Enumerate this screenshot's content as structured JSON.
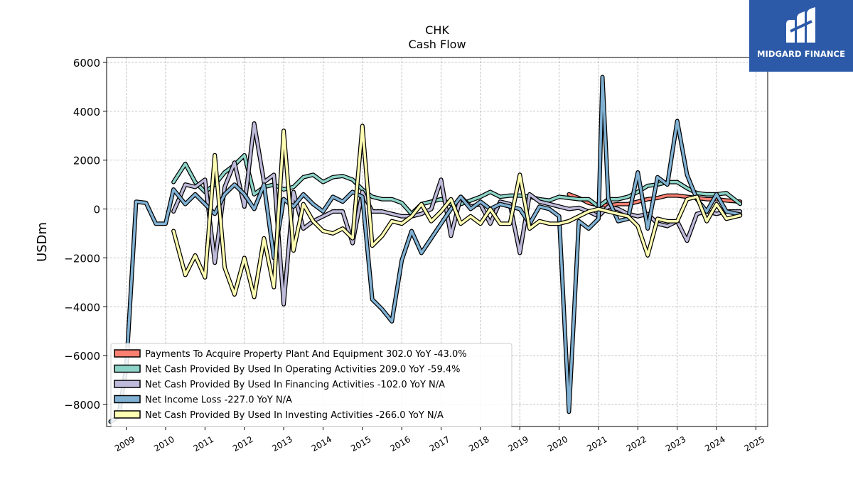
{
  "header": {
    "title": "CHK",
    "subtitle": "Cash Flow"
  },
  "logo": {
    "brand": "MIDGARD FINANCE",
    "background": "#2c5aa8"
  },
  "chart_data": {
    "type": "line",
    "ylabel": "USDm",
    "xlabel": "",
    "ylim": [
      -8900,
      6200
    ],
    "xlim": [
      2008.5,
      2025.3
    ],
    "yticks": [
      -8000,
      -6000,
      -4000,
      -2000,
      0,
      2000,
      4000,
      6000
    ],
    "xticks": [
      "2009",
      "2010",
      "2011",
      "2012",
      "2013",
      "2014",
      "2015",
      "2016",
      "2017",
      "2018",
      "2019",
      "2020",
      "2021",
      "2022",
      "2023",
      "2024",
      "2025"
    ],
    "grid": true,
    "legend_position": "lower-left",
    "series": [
      {
        "name": "Payments To Acquire Property Plant And Equipment",
        "legend_label": "Payments To Acquire Property Plant And Equipment  302.0 YoY -43.0%",
        "color": "#fb8072",
        "points": [
          [
            2020.25,
            600
          ],
          [
            2020.5,
            450
          ],
          [
            2020.75,
            250
          ],
          [
            2021.0,
            150
          ],
          [
            2021.25,
            150
          ],
          [
            2021.5,
            200
          ],
          [
            2021.75,
            200
          ],
          [
            2022.0,
            300
          ],
          [
            2022.25,
            400
          ],
          [
            2022.5,
            450
          ],
          [
            2022.75,
            550
          ],
          [
            2023.0,
            550
          ],
          [
            2023.25,
            500
          ],
          [
            2023.5,
            450
          ],
          [
            2023.75,
            400
          ],
          [
            2024.0,
            400
          ],
          [
            2024.25,
            350
          ],
          [
            2024.6,
            302
          ]
        ]
      },
      {
        "name": "Net Cash Provided By Used In Operating Activities",
        "legend_label": "Net Cash Provided By Used In Operating Activities  209.0 YoY -59.4%",
        "color": "#8dd3c7",
        "points": [
          [
            2010.2,
            1100
          ],
          [
            2010.5,
            1850
          ],
          [
            2010.75,
            1100
          ],
          [
            2011.0,
            700
          ],
          [
            2011.25,
            1000
          ],
          [
            2011.5,
            1500
          ],
          [
            2011.75,
            1800
          ],
          [
            2012.0,
            2200
          ],
          [
            2012.25,
            600
          ],
          [
            2012.5,
            900
          ],
          [
            2012.75,
            1000
          ],
          [
            2013.0,
            800
          ],
          [
            2013.25,
            900
          ],
          [
            2013.5,
            1300
          ],
          [
            2013.75,
            1400
          ],
          [
            2014.0,
            1100
          ],
          [
            2014.25,
            1300
          ],
          [
            2014.5,
            1350
          ],
          [
            2014.75,
            1200
          ],
          [
            2015.0,
            800
          ],
          [
            2015.25,
            500
          ],
          [
            2015.5,
            400
          ],
          [
            2015.75,
            400
          ],
          [
            2016.0,
            250
          ],
          [
            2016.25,
            -200
          ],
          [
            2016.5,
            200
          ],
          [
            2016.75,
            300
          ],
          [
            2017.0,
            400
          ],
          [
            2017.25,
            200
          ],
          [
            2017.5,
            200
          ],
          [
            2017.75,
            350
          ],
          [
            2018.0,
            500
          ],
          [
            2018.25,
            700
          ],
          [
            2018.5,
            500
          ],
          [
            2018.75,
            550
          ],
          [
            2019.0,
            550
          ],
          [
            2019.25,
            500
          ],
          [
            2019.5,
            400
          ],
          [
            2019.75,
            350
          ],
          [
            2020.0,
            500
          ],
          [
            2020.25,
            450
          ],
          [
            2020.5,
            400
          ],
          [
            2020.75,
            400
          ],
          [
            2021.0,
            100
          ],
          [
            2021.25,
            400
          ],
          [
            2021.5,
            400
          ],
          [
            2021.75,
            500
          ],
          [
            2022.0,
            700
          ],
          [
            2022.25,
            950
          ],
          [
            2022.5,
            1000
          ],
          [
            2022.75,
            1100
          ],
          [
            2023.0,
            1100
          ],
          [
            2023.25,
            850
          ],
          [
            2023.5,
            650
          ],
          [
            2023.75,
            600
          ],
          [
            2024.0,
            600
          ],
          [
            2024.25,
            650
          ],
          [
            2024.6,
            209
          ]
        ]
      },
      {
        "name": "Net Cash Provided By Used In Financing Activities",
        "legend_label": "Net Cash Provided By Used In Financing Activities  -102.0 YoY N/A",
        "color": "#bebada",
        "points": [
          [
            2010.2,
            -100
          ],
          [
            2010.5,
            1000
          ],
          [
            2010.75,
            900
          ],
          [
            2011.0,
            1200
          ],
          [
            2011.25,
            -2200
          ],
          [
            2011.5,
            900
          ],
          [
            2011.75,
            1900
          ],
          [
            2012.0,
            100
          ],
          [
            2012.25,
            3500
          ],
          [
            2012.5,
            1100
          ],
          [
            2012.75,
            1400
          ],
          [
            2013.0,
            -3900
          ],
          [
            2013.25,
            700
          ],
          [
            2013.5,
            -800
          ],
          [
            2013.75,
            -500
          ],
          [
            2014.0,
            -300
          ],
          [
            2014.25,
            -100
          ],
          [
            2014.5,
            -100
          ],
          [
            2014.75,
            -1400
          ],
          [
            2015.0,
            700
          ],
          [
            2015.25,
            -100
          ],
          [
            2015.5,
            -100
          ],
          [
            2015.75,
            -200
          ],
          [
            2016.0,
            -300
          ],
          [
            2016.25,
            -300
          ],
          [
            2016.5,
            -200
          ],
          [
            2016.75,
            0
          ],
          [
            2017.0,
            1200
          ],
          [
            2017.25,
            -1100
          ],
          [
            2017.5,
            500
          ],
          [
            2017.75,
            100
          ],
          [
            2018.0,
            200
          ],
          [
            2018.25,
            -600
          ],
          [
            2018.5,
            300
          ],
          [
            2018.75,
            200
          ],
          [
            2019.0,
            -1800
          ],
          [
            2019.25,
            600
          ],
          [
            2019.5,
            300
          ],
          [
            2019.75,
            200
          ],
          [
            2020.0,
            100
          ],
          [
            2020.25,
            0
          ],
          [
            2020.5,
            50
          ],
          [
            2020.75,
            -100
          ],
          [
            2021.0,
            -300
          ],
          [
            2021.25,
            100
          ],
          [
            2021.5,
            0
          ],
          [
            2021.75,
            -200
          ],
          [
            2022.0,
            -300
          ],
          [
            2022.25,
            -200
          ],
          [
            2022.5,
            -600
          ],
          [
            2022.75,
            -700
          ],
          [
            2023.0,
            -500
          ],
          [
            2023.25,
            -1300
          ],
          [
            2023.5,
            -200
          ],
          [
            2023.75,
            -100
          ],
          [
            2024.0,
            -200
          ],
          [
            2024.25,
            -100
          ],
          [
            2024.6,
            -102
          ]
        ]
      },
      {
        "name": "Net Income Loss",
        "legend_label": "Net Income Loss  -227.0 YoY N/A",
        "color": "#80b1d3",
        "points": [
          [
            2008.6,
            -8700
          ],
          [
            2008.8,
            -8500
          ],
          [
            2009.0,
            -6500
          ],
          [
            2009.25,
            300
          ],
          [
            2009.5,
            250
          ],
          [
            2009.75,
            -600
          ],
          [
            2010.0,
            -600
          ],
          [
            2010.2,
            800
          ],
          [
            2010.5,
            200
          ],
          [
            2010.75,
            600
          ],
          [
            2011.0,
            200
          ],
          [
            2011.25,
            -200
          ],
          [
            2011.5,
            600
          ],
          [
            2011.75,
            1000
          ],
          [
            2012.0,
            600
          ],
          [
            2012.25,
            0
          ],
          [
            2012.5,
            1000
          ],
          [
            2012.75,
            -2000
          ],
          [
            2013.0,
            400
          ],
          [
            2013.25,
            100
          ],
          [
            2013.5,
            600
          ],
          [
            2013.75,
            200
          ],
          [
            2014.0,
            -100
          ],
          [
            2014.25,
            500
          ],
          [
            2014.5,
            300
          ],
          [
            2014.75,
            700
          ],
          [
            2015.0,
            500
          ],
          [
            2015.25,
            -3700
          ],
          [
            2015.5,
            -4100
          ],
          [
            2015.75,
            -4600
          ],
          [
            2016.0,
            -2100
          ],
          [
            2016.25,
            -900
          ],
          [
            2016.5,
            -1800
          ],
          [
            2016.75,
            -1200
          ],
          [
            2017.0,
            -600
          ],
          [
            2017.25,
            0
          ],
          [
            2017.5,
            500
          ],
          [
            2017.75,
            0
          ],
          [
            2018.0,
            300
          ],
          [
            2018.25,
            0
          ],
          [
            2018.5,
            200
          ],
          [
            2018.75,
            100
          ],
          [
            2019.0,
            0
          ],
          [
            2019.25,
            -600
          ],
          [
            2019.5,
            100
          ],
          [
            2019.75,
            0
          ],
          [
            2020.0,
            -300
          ],
          [
            2020.25,
            -8300
          ],
          [
            2020.5,
            -500
          ],
          [
            2020.75,
            -800
          ],
          [
            2021.0,
            -400
          ],
          [
            2021.1,
            5400
          ],
          [
            2021.25,
            400
          ],
          [
            2021.5,
            -500
          ],
          [
            2021.75,
            -400
          ],
          [
            2022.0,
            1500
          ],
          [
            2022.25,
            -800
          ],
          [
            2022.5,
            1300
          ],
          [
            2022.75,
            1000
          ],
          [
            2023.0,
            3600
          ],
          [
            2023.25,
            1400
          ],
          [
            2023.5,
            400
          ],
          [
            2023.75,
            -100
          ],
          [
            2024.0,
            600
          ],
          [
            2024.25,
            -100
          ],
          [
            2024.6,
            -227
          ]
        ]
      },
      {
        "name": "Net Cash Provided By Used In Investing Activities",
        "legend_label": "Net Cash Provided By Used In Investing Activities  -266.0 YoY N/A",
        "color": "#ffffb3",
        "points": [
          [
            2010.2,
            -900
          ],
          [
            2010.5,
            -2700
          ],
          [
            2010.75,
            -1900
          ],
          [
            2011.0,
            -2800
          ],
          [
            2011.25,
            2200
          ],
          [
            2011.5,
            -2400
          ],
          [
            2011.75,
            -3500
          ],
          [
            2012.0,
            -2000
          ],
          [
            2012.25,
            -3600
          ],
          [
            2012.5,
            -1200
          ],
          [
            2012.75,
            -3200
          ],
          [
            2013.0,
            3200
          ],
          [
            2013.25,
            -1700
          ],
          [
            2013.5,
            200
          ],
          [
            2013.75,
            -500
          ],
          [
            2014.0,
            -900
          ],
          [
            2014.25,
            -1000
          ],
          [
            2014.5,
            -800
          ],
          [
            2014.75,
            -1200
          ],
          [
            2015.0,
            3400
          ],
          [
            2015.25,
            -1500
          ],
          [
            2015.5,
            -1100
          ],
          [
            2015.75,
            -500
          ],
          [
            2016.0,
            -600
          ],
          [
            2016.25,
            -300
          ],
          [
            2016.5,
            200
          ],
          [
            2016.75,
            -500
          ],
          [
            2017.0,
            -100
          ],
          [
            2017.25,
            400
          ],
          [
            2017.5,
            -600
          ],
          [
            2017.75,
            -300
          ],
          [
            2018.0,
            -600
          ],
          [
            2018.25,
            0
          ],
          [
            2018.5,
            -600
          ],
          [
            2018.75,
            -600
          ],
          [
            2019.0,
            1400
          ],
          [
            2019.25,
            -800
          ],
          [
            2019.5,
            -500
          ],
          [
            2019.75,
            -600
          ],
          [
            2020.0,
            -600
          ],
          [
            2020.25,
            -500
          ],
          [
            2020.5,
            -300
          ],
          [
            2020.75,
            -100
          ],
          [
            2021.0,
            0
          ],
          [
            2021.25,
            -100
          ],
          [
            2021.5,
            -200
          ],
          [
            2021.75,
            -300
          ],
          [
            2022.0,
            -700
          ],
          [
            2022.25,
            -1900
          ],
          [
            2022.5,
            -400
          ],
          [
            2022.75,
            -500
          ],
          [
            2023.0,
            -500
          ],
          [
            2023.25,
            400
          ],
          [
            2023.5,
            500
          ],
          [
            2023.75,
            -500
          ],
          [
            2024.0,
            200
          ],
          [
            2024.25,
            -400
          ],
          [
            2024.6,
            -266
          ]
        ]
      }
    ]
  }
}
